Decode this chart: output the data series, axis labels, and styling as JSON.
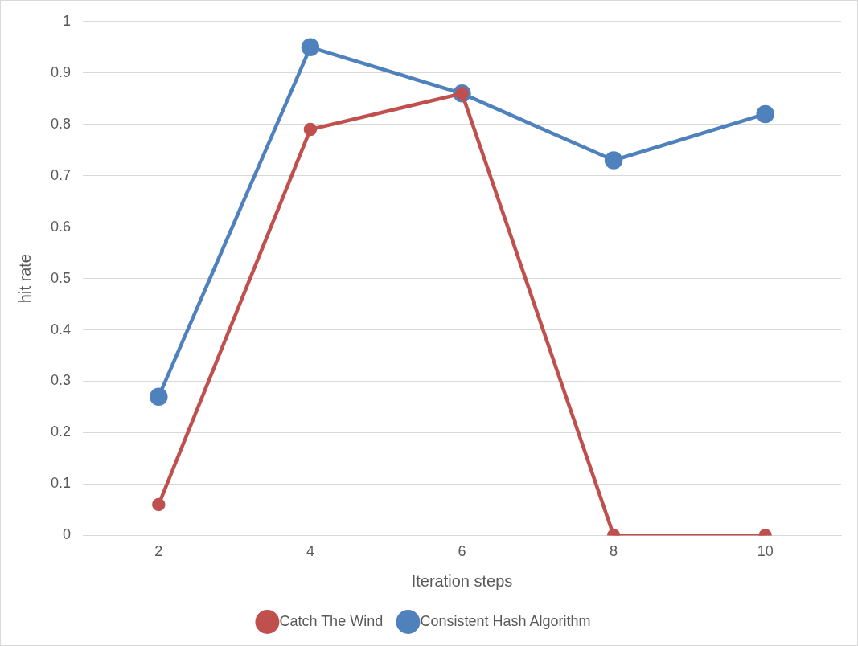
{
  "chart_data": {
    "type": "line",
    "xlabel": "Iteration steps",
    "ylabel": "hit rate",
    "categories": [
      "2",
      "4",
      "6",
      "8",
      "10"
    ],
    "series": [
      {
        "name": "Consistent Hash Algorithm",
        "color": "#4f81bd",
        "values": [
          0.27,
          0.95,
          0.86,
          0.73,
          0.82
        ]
      },
      {
        "name": "Catch The Wind",
        "color": "#c0504d",
        "values": [
          0.06,
          0.79,
          0.86,
          0,
          0
        ]
      }
    ],
    "ylim": [
      0,
      1
    ],
    "yticks": [
      0,
      0.1,
      0.2,
      0.3,
      0.4,
      0.5,
      0.6,
      0.7,
      0.8,
      0.9,
      1
    ],
    "grid": "y",
    "legend": "bottom",
    "marker": "circle",
    "line_style": "solid"
  }
}
